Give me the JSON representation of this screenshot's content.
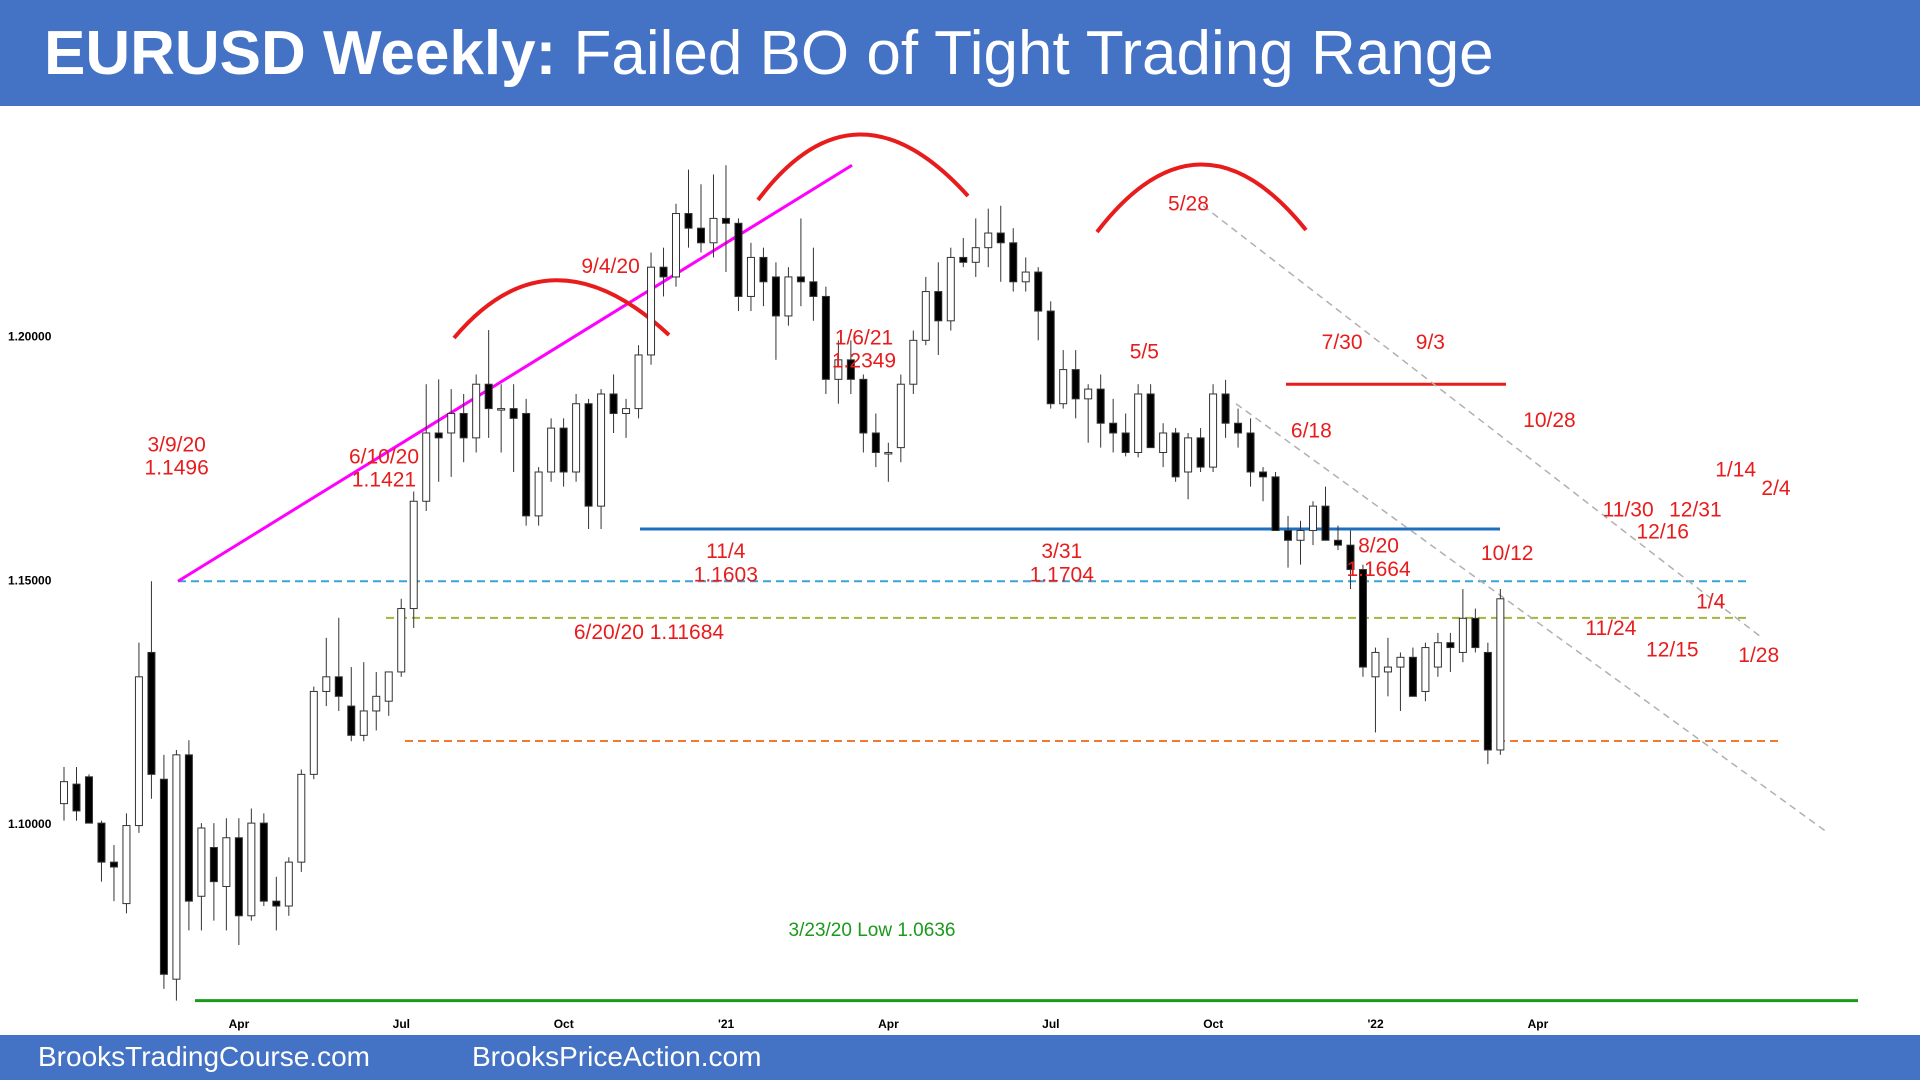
{
  "header": {
    "title_bold": "EURUSD Weekly:",
    "title_rest": " Failed BO of Tight Trading Range"
  },
  "footer": {
    "left": "BrooksTradingCourse.com",
    "right": "BrooksPriceAction.com"
  },
  "colors": {
    "banner": "#4472c4",
    "annotation_red": "#e81c1c",
    "trendline": "#ff00ff",
    "support_blue": "#1f6fbf",
    "low_green": "#1a9a1a",
    "dashed_cyan": "#3aa3d8",
    "dashed_olive": "#a8b33a",
    "dashed_orange": "#f07a30",
    "channel_gray": "#b0b0b0"
  },
  "chart_data": {
    "type": "candlestick",
    "timeframe": "weekly",
    "y_ticks": [
      {
        "value": 1.1,
        "label": "1.10000"
      },
      {
        "value": 1.15,
        "label": "1.15000"
      },
      {
        "value": 1.2,
        "label": "1.20000"
      }
    ],
    "x_ticks": [
      "Apr",
      "Jul",
      "Oct",
      "'21",
      "Apr",
      "Jul",
      "Oct",
      "'22",
      "Apr"
    ],
    "candles": [
      [
        1.104,
        1.1115,
        1.1005,
        1.1085
      ],
      [
        1.108,
        1.1115,
        1.1005,
        1.1025
      ],
      [
        1.1095,
        1.11,
        1.1,
        1.1
      ],
      [
        1.1,
        1.1005,
        1.088,
        1.092
      ],
      [
        1.092,
        1.0955,
        1.084,
        1.091
      ],
      [
        1.0835,
        1.102,
        1.0815,
        1.0995
      ],
      [
        1.0995,
        1.137,
        1.098,
        1.13
      ],
      [
        1.135,
        1.1496,
        1.105,
        1.11
      ],
      [
        1.109,
        1.114,
        1.066,
        1.069
      ],
      [
        1.068,
        1.115,
        1.0636,
        1.114
      ],
      [
        1.114,
        1.117,
        1.078,
        1.084
      ],
      [
        1.085,
        1.1,
        1.078,
        1.099
      ],
      [
        1.095,
        1.1,
        1.08,
        1.088
      ],
      [
        1.087,
        1.101,
        1.078,
        1.097
      ],
      [
        1.097,
        1.101,
        1.075,
        1.081
      ],
      [
        1.081,
        1.103,
        1.08,
        1.1
      ],
      [
        1.1,
        1.102,
        1.083,
        1.084
      ],
      [
        1.084,
        1.089,
        1.078,
        1.083
      ],
      [
        1.083,
        1.093,
        1.081,
        1.092
      ],
      [
        1.092,
        1.111,
        1.09,
        1.11
      ],
      [
        1.11,
        1.128,
        1.109,
        1.127
      ],
      [
        1.127,
        1.138,
        1.124,
        1.13
      ],
      [
        1.13,
        1.1421,
        1.123,
        1.126
      ],
      [
        1.124,
        1.132,
        1.1168,
        1.118
      ],
      [
        1.118,
        1.133,
        1.1168,
        1.123
      ],
      [
        1.123,
        1.131,
        1.119,
        1.126
      ],
      [
        1.125,
        1.131,
        1.122,
        1.131
      ],
      [
        1.131,
        1.146,
        1.13,
        1.144
      ],
      [
        1.144,
        1.168,
        1.14,
        1.166
      ],
      [
        1.166,
        1.19,
        1.164,
        1.18
      ],
      [
        1.18,
        1.191,
        1.17,
        1.179
      ],
      [
        1.18,
        1.189,
        1.171,
        1.184
      ],
      [
        1.184,
        1.188,
        1.174,
        1.179
      ],
      [
        1.179,
        1.192,
        1.176,
        1.19
      ],
      [
        1.19,
        1.2011,
        1.179,
        1.185
      ],
      [
        1.185,
        1.19,
        1.176,
        1.185
      ],
      [
        1.185,
        1.19,
        1.172,
        1.183
      ],
      [
        1.184,
        1.187,
        1.161,
        1.163
      ],
      [
        1.163,
        1.173,
        1.161,
        1.172
      ],
      [
        1.172,
        1.183,
        1.17,
        1.181
      ],
      [
        1.181,
        1.183,
        1.169,
        1.172
      ],
      [
        1.172,
        1.188,
        1.17,
        1.186
      ],
      [
        1.186,
        1.187,
        1.1603,
        1.165
      ],
      [
        1.165,
        1.189,
        1.1603,
        1.188
      ],
      [
        1.188,
        1.192,
        1.18,
        1.184
      ],
      [
        1.184,
        1.187,
        1.179,
        1.185
      ],
      [
        1.185,
        1.198,
        1.183,
        1.196
      ],
      [
        1.196,
        1.217,
        1.194,
        1.214
      ],
      [
        1.214,
        1.218,
        1.208,
        1.212
      ],
      [
        1.212,
        1.227,
        1.21,
        1.225
      ],
      [
        1.225,
        1.234,
        1.218,
        1.222
      ],
      [
        1.222,
        1.231,
        1.217,
        1.219
      ],
      [
        1.219,
        1.233,
        1.216,
        1.224
      ],
      [
        1.224,
        1.2349,
        1.213,
        1.223
      ],
      [
        1.223,
        1.224,
        1.205,
        1.208
      ],
      [
        1.208,
        1.219,
        1.205,
        1.216
      ],
      [
        1.216,
        1.218,
        1.206,
        1.211
      ],
      [
        1.212,
        1.215,
        1.195,
        1.204
      ],
      [
        1.204,
        1.214,
        1.202,
        1.212
      ],
      [
        1.212,
        1.224,
        1.206,
        1.211
      ],
      [
        1.211,
        1.218,
        1.203,
        1.208
      ],
      [
        1.208,
        1.21,
        1.188,
        1.191
      ],
      [
        1.191,
        1.199,
        1.186,
        1.195
      ],
      [
        1.195,
        1.199,
        1.188,
        1.191
      ],
      [
        1.191,
        1.192,
        1.176,
        1.18
      ],
      [
        1.18,
        1.184,
        1.173,
        1.176
      ],
      [
        1.176,
        1.178,
        1.17,
        1.176
      ],
      [
        1.177,
        1.192,
        1.174,
        1.19
      ],
      [
        1.19,
        1.201,
        1.188,
        1.199
      ],
      [
        1.199,
        1.212,
        1.198,
        1.209
      ],
      [
        1.209,
        1.215,
        1.196,
        1.203
      ],
      [
        1.203,
        1.218,
        1.201,
        1.216
      ],
      [
        1.216,
        1.22,
        1.214,
        1.215
      ],
      [
        1.215,
        1.224,
        1.212,
        1.218
      ],
      [
        1.218,
        1.226,
        1.214,
        1.221
      ],
      [
        1.221,
        1.2266,
        1.211,
        1.219
      ],
      [
        1.219,
        1.222,
        1.209,
        1.211
      ],
      [
        1.211,
        1.216,
        1.209,
        1.213
      ],
      [
        1.213,
        1.214,
        1.199,
        1.205
      ],
      [
        1.205,
        1.207,
        1.185,
        1.186
      ],
      [
        1.186,
        1.197,
        1.185,
        1.193
      ],
      [
        1.193,
        1.197,
        1.183,
        1.187
      ],
      [
        1.187,
        1.19,
        1.178,
        1.189
      ],
      [
        1.189,
        1.192,
        1.177,
        1.182
      ],
      [
        1.182,
        1.187,
        1.176,
        1.18
      ],
      [
        1.18,
        1.184,
        1.1752,
        1.176
      ],
      [
        1.176,
        1.19,
        1.175,
        1.188
      ],
      [
        1.188,
        1.19,
        1.177,
        1.177
      ],
      [
        1.176,
        1.182,
        1.173,
        1.18
      ],
      [
        1.18,
        1.181,
        1.17,
        1.171
      ],
      [
        1.172,
        1.18,
        1.1664,
        1.179
      ],
      [
        1.179,
        1.181,
        1.172,
        1.173
      ],
      [
        1.173,
        1.19,
        1.172,
        1.188
      ],
      [
        1.188,
        1.1909,
        1.179,
        1.182
      ],
      [
        1.182,
        1.185,
        1.177,
        1.18
      ],
      [
        1.18,
        1.183,
        1.169,
        1.172
      ],
      [
        1.172,
        1.173,
        1.166,
        1.171
      ],
      [
        1.171,
        1.172,
        1.16,
        1.16
      ],
      [
        1.16,
        1.163,
        1.1524,
        1.158
      ],
      [
        1.158,
        1.162,
        1.153,
        1.16
      ],
      [
        1.16,
        1.166,
        1.157,
        1.165
      ],
      [
        1.165,
        1.169,
        1.158,
        1.158
      ],
      [
        1.158,
        1.161,
        1.156,
        1.157
      ],
      [
        1.157,
        1.16,
        1.148,
        1.152
      ],
      [
        1.152,
        1.153,
        1.13,
        1.132
      ],
      [
        1.13,
        1.136,
        1.1186,
        1.135
      ],
      [
        1.131,
        1.138,
        1.126,
        1.132
      ],
      [
        1.132,
        1.135,
        1.123,
        1.134
      ],
      [
        1.134,
        1.136,
        1.126,
        1.126
      ],
      [
        1.127,
        1.137,
        1.125,
        1.136
      ],
      [
        1.132,
        1.139,
        1.13,
        1.137
      ],
      [
        1.137,
        1.139,
        1.131,
        1.136
      ],
      [
        1.135,
        1.148,
        1.133,
        1.142
      ],
      [
        1.142,
        1.144,
        1.135,
        1.136
      ],
      [
        1.135,
        1.137,
        1.1121,
        1.115
      ],
      [
        1.115,
        1.148,
        1.114,
        1.146
      ]
    ],
    "series": [
      {
        "name": "3/23/20 Low 1.0636",
        "level": 1.0636
      },
      {
        "name": "6/10/20 1.1421",
        "level": 1.1421
      },
      {
        "name": "3/9/20 1.1496",
        "level": 1.1496
      }
    ],
    "annotations": [
      {
        "x": 0.092,
        "y": 0.362,
        "text": "3/9/20"
      },
      {
        "x": 0.092,
        "y": 0.387,
        "text": "1.1496"
      },
      {
        "x": 0.2,
        "y": 0.375,
        "text": "6/10/20"
      },
      {
        "x": 0.2,
        "y": 0.4,
        "text": "1.1421"
      },
      {
        "x": 0.318,
        "y": 0.17,
        "text": "9/4/20"
      },
      {
        "x": 0.45,
        "y": 0.247,
        "text": "1/6/21"
      },
      {
        "x": 0.45,
        "y": 0.272,
        "text": "1.2349"
      },
      {
        "x": 0.619,
        "y": 0.103,
        "text": "5/28"
      },
      {
        "x": 0.596,
        "y": 0.262,
        "text": "5/5"
      },
      {
        "x": 0.699,
        "y": 0.252,
        "text": "7/30"
      },
      {
        "x": 0.745,
        "y": 0.252,
        "text": "9/3"
      },
      {
        "x": 0.683,
        "y": 0.347,
        "text": "6/18"
      },
      {
        "x": 0.807,
        "y": 0.336,
        "text": "10/28"
      },
      {
        "x": 0.904,
        "y": 0.389,
        "text": "1/14"
      },
      {
        "x": 0.925,
        "y": 0.409,
        "text": "2/4"
      },
      {
        "x": 0.848,
        "y": 0.432,
        "text": "11/30"
      },
      {
        "x": 0.883,
        "y": 0.432,
        "text": "12/31"
      },
      {
        "x": 0.866,
        "y": 0.456,
        "text": "12/16"
      },
      {
        "x": 0.785,
        "y": 0.479,
        "text": "10/12"
      },
      {
        "x": 0.378,
        "y": 0.477,
        "text": "11/4"
      },
      {
        "x": 0.378,
        "y": 0.502,
        "text": "1.1603"
      },
      {
        "x": 0.553,
        "y": 0.477,
        "text": "3/31"
      },
      {
        "x": 0.553,
        "y": 0.502,
        "text": "1.1704"
      },
      {
        "x": 0.718,
        "y": 0.471,
        "text": "8/20"
      },
      {
        "x": 0.718,
        "y": 0.496,
        "text": "1.1664"
      },
      {
        "x": 0.891,
        "y": 0.531,
        "text": "1/4"
      },
      {
        "x": 0.839,
        "y": 0.56,
        "text": "11/24"
      },
      {
        "x": 0.871,
        "y": 0.583,
        "text": "12/15"
      },
      {
        "x": 0.916,
        "y": 0.589,
        "text": "1/28"
      },
      {
        "x": 0.338,
        "y": 0.564,
        "text": "6/20/20 1.11684"
      }
    ],
    "low_label": "3/23/20 Low 1.0636",
    "ylim": [
      1.0625,
      1.245
    ]
  }
}
